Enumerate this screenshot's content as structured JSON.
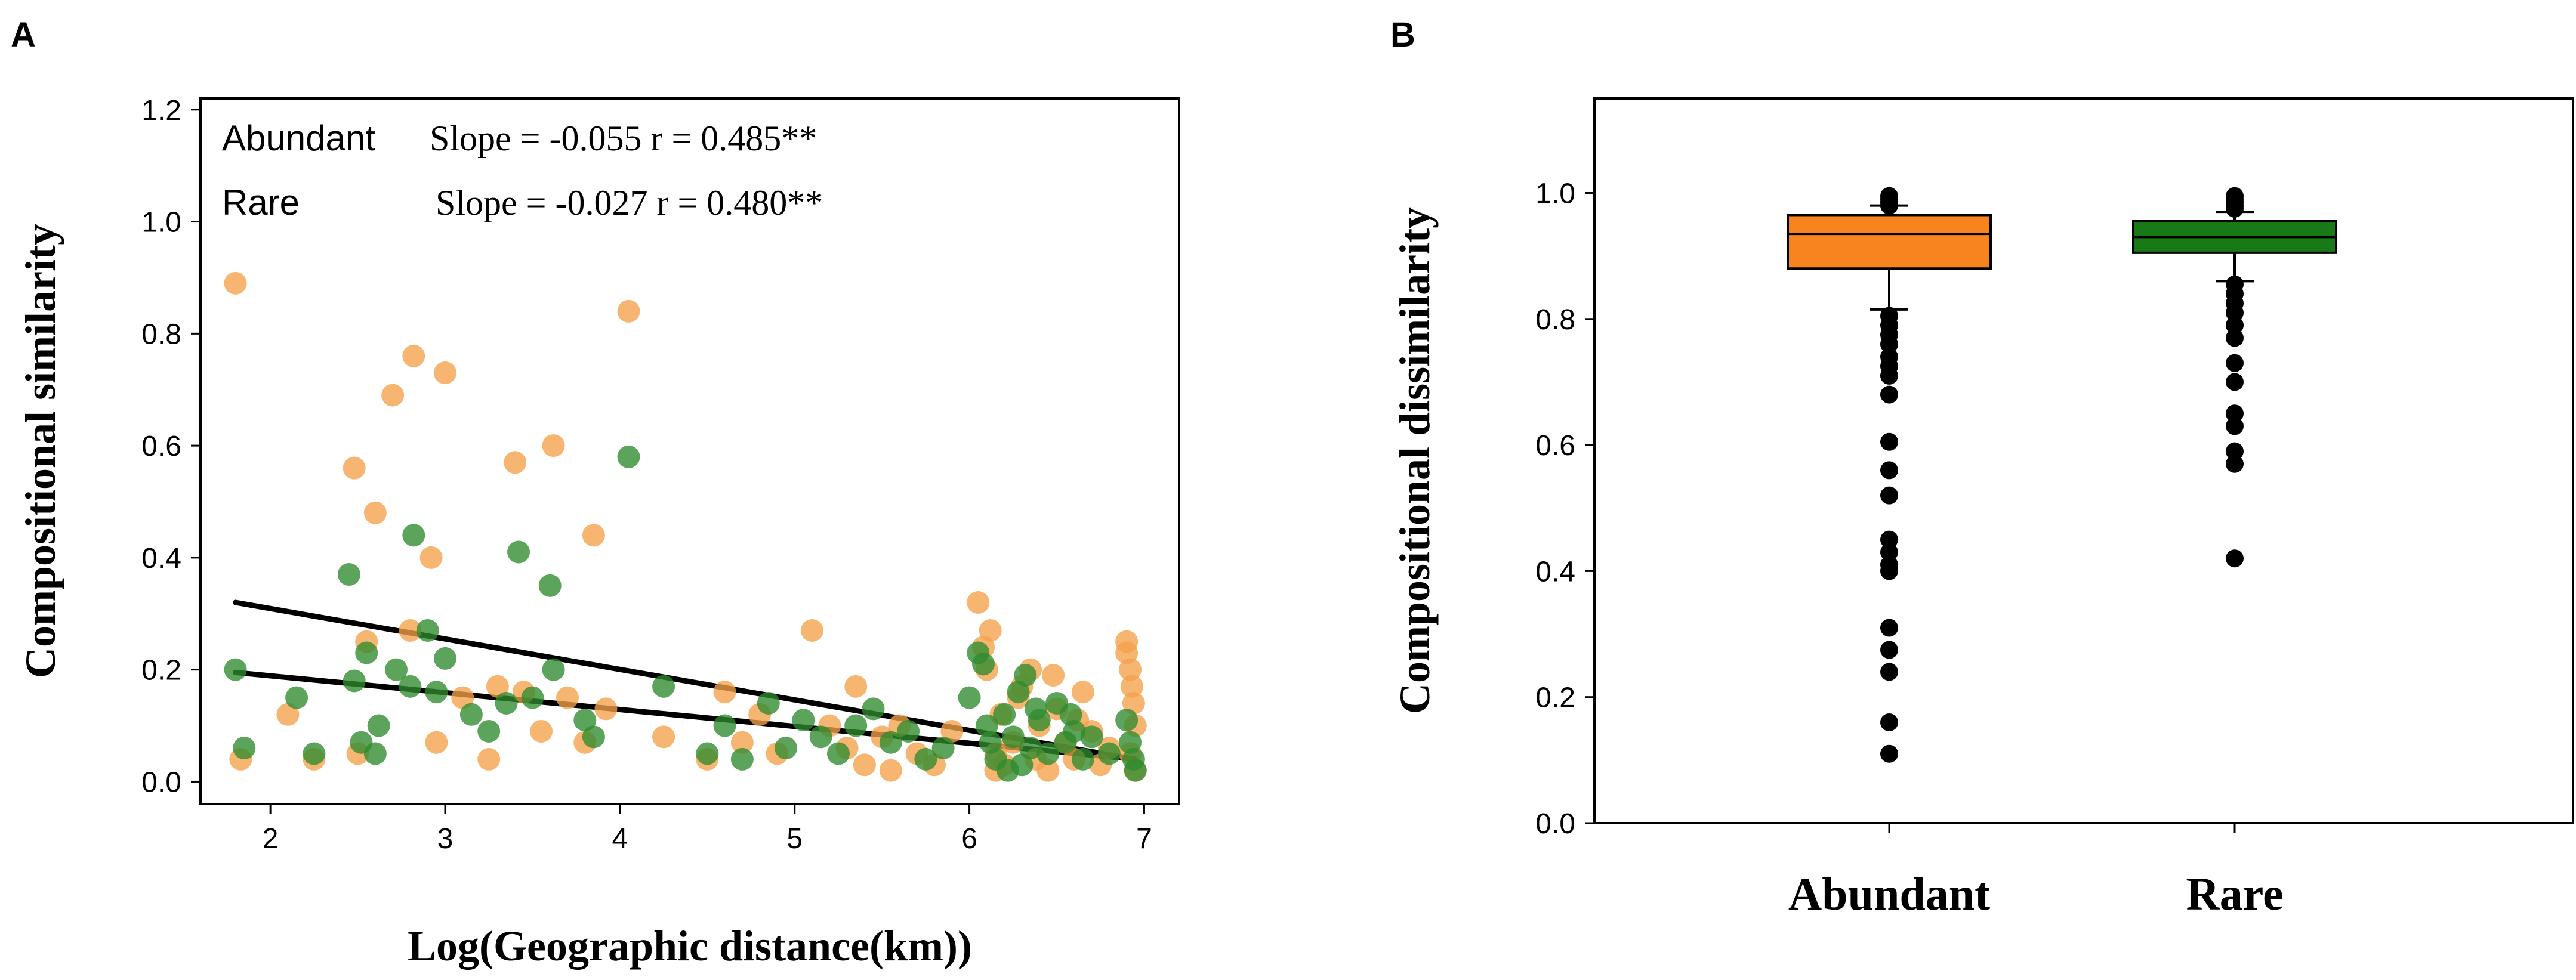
{
  "chart_data": [
    {
      "panel": "A",
      "type": "scatter",
      "xlabel": "Log(Geographic distance(km))",
      "ylabel": "Compositional similarity",
      "xlim": [
        1.6,
        7.2
      ],
      "ylim": [
        -0.04,
        1.22
      ],
      "xticks": [
        "2",
        "3",
        "4",
        "5",
        "6",
        "7"
      ],
      "yticks": [
        "0.0",
        "0.2",
        "0.4",
        "0.6",
        "0.8",
        "1.0",
        "1.2"
      ],
      "series": [
        {
          "name": "Abundant",
          "stat_label": "Slope = -0.055 r = 0.485**",
          "color": "#f5a04a",
          "trend": {
            "x": [
              1.8,
              6.95
            ],
            "y": [
              0.32,
              0.04
            ]
          },
          "points": [
            [
              1.8,
              0.89
            ],
            [
              1.83,
              0.04
            ],
            [
              2.1,
              0.12
            ],
            [
              2.25,
              0.04
            ],
            [
              2.48,
              0.56
            ],
            [
              2.5,
              0.05
            ],
            [
              2.55,
              0.25
            ],
            [
              2.6,
              0.48
            ],
            [
              2.7,
              0.69
            ],
            [
              2.8,
              0.27
            ],
            [
              2.82,
              0.76
            ],
            [
              2.92,
              0.4
            ],
            [
              2.95,
              0.07
            ],
            [
              3.0,
              0.73
            ],
            [
              3.1,
              0.15
            ],
            [
              3.25,
              0.04
            ],
            [
              3.3,
              0.17
            ],
            [
              3.4,
              0.57
            ],
            [
              3.45,
              0.16
            ],
            [
              3.55,
              0.09
            ],
            [
              3.62,
              0.6
            ],
            [
              3.7,
              0.15
            ],
            [
              3.8,
              0.07
            ],
            [
              3.85,
              0.44
            ],
            [
              3.92,
              0.13
            ],
            [
              4.05,
              0.84
            ],
            [
              4.25,
              0.08
            ],
            [
              4.5,
              0.04
            ],
            [
              4.6,
              0.16
            ],
            [
              4.7,
              0.07
            ],
            [
              4.8,
              0.12
            ],
            [
              4.9,
              0.05
            ],
            [
              5.1,
              0.27
            ],
            [
              5.2,
              0.1
            ],
            [
              5.3,
              0.06
            ],
            [
              5.35,
              0.17
            ],
            [
              5.4,
              0.03
            ],
            [
              5.5,
              0.08
            ],
            [
              5.55,
              0.02
            ],
            [
              5.6,
              0.1
            ],
            [
              5.7,
              0.05
            ],
            [
              5.8,
              0.03
            ],
            [
              5.9,
              0.09
            ],
            [
              6.05,
              0.32
            ],
            [
              6.08,
              0.24
            ],
            [
              6.1,
              0.2
            ],
            [
              6.12,
              0.27
            ],
            [
              6.15,
              0.05
            ],
            [
              6.18,
              0.12
            ],
            [
              6.2,
              0.03
            ],
            [
              6.25,
              0.07
            ],
            [
              6.3,
              0.17
            ],
            [
              6.35,
              0.2
            ],
            [
              6.38,
              0.04
            ],
            [
              6.4,
              0.1
            ],
            [
              6.45,
              0.02
            ],
            [
              6.5,
              0.13
            ],
            [
              6.55,
              0.07
            ],
            [
              6.6,
              0.04
            ],
            [
              6.65,
              0.16
            ],
            [
              6.7,
              0.09
            ],
            [
              6.75,
              0.03
            ],
            [
              6.8,
              0.06
            ],
            [
              6.9,
              0.25
            ],
            [
              6.9,
              0.23
            ],
            [
              6.92,
              0.2
            ],
            [
              6.93,
              0.17
            ],
            [
              6.94,
              0.14
            ],
            [
              6.95,
              0.1
            ],
            [
              6.92,
              0.05
            ],
            [
              6.95,
              0.02
            ],
            [
              6.15,
              0.02
            ],
            [
              6.28,
              0.15
            ],
            [
              6.48,
              0.19
            ],
            [
              6.62,
              0.11
            ]
          ]
        },
        {
          "name": "Rare",
          "stat_label": "Slope = -0.027 r = 0.480**",
          "color": "#2e8b2e",
          "trend": {
            "x": [
              1.8,
              6.95
            ],
            "y": [
              0.195,
              0.04
            ]
          },
          "points": [
            [
              1.8,
              0.2
            ],
            [
              1.85,
              0.06
            ],
            [
              2.15,
              0.15
            ],
            [
              2.25,
              0.05
            ],
            [
              2.45,
              0.37
            ],
            [
              2.48,
              0.18
            ],
            [
              2.52,
              0.07
            ],
            [
              2.55,
              0.23
            ],
            [
              2.6,
              0.05
            ],
            [
              2.62,
              0.1
            ],
            [
              2.72,
              0.2
            ],
            [
              2.8,
              0.17
            ],
            [
              2.82,
              0.44
            ],
            [
              2.9,
              0.27
            ],
            [
              2.95,
              0.16
            ],
            [
              3.0,
              0.22
            ],
            [
              3.15,
              0.12
            ],
            [
              3.25,
              0.09
            ],
            [
              3.35,
              0.14
            ],
            [
              3.42,
              0.41
            ],
            [
              3.5,
              0.15
            ],
            [
              3.6,
              0.35
            ],
            [
              3.62,
              0.2
            ],
            [
              3.8,
              0.11
            ],
            [
              3.85,
              0.08
            ],
            [
              4.05,
              0.58
            ],
            [
              4.25,
              0.17
            ],
            [
              4.5,
              0.05
            ],
            [
              4.6,
              0.1
            ],
            [
              4.7,
              0.04
            ],
            [
              4.85,
              0.14
            ],
            [
              4.95,
              0.06
            ],
            [
              5.05,
              0.11
            ],
            [
              5.15,
              0.08
            ],
            [
              5.25,
              0.05
            ],
            [
              5.35,
              0.1
            ],
            [
              5.45,
              0.13
            ],
            [
              5.55,
              0.07
            ],
            [
              5.65,
              0.09
            ],
            [
              5.75,
              0.04
            ],
            [
              5.85,
              0.06
            ],
            [
              6.0,
              0.15
            ],
            [
              6.05,
              0.23
            ],
            [
              6.08,
              0.21
            ],
            [
              6.1,
              0.1
            ],
            [
              6.15,
              0.04
            ],
            [
              6.2,
              0.12
            ],
            [
              6.25,
              0.08
            ],
            [
              6.28,
              0.16
            ],
            [
              6.3,
              0.03
            ],
            [
              6.32,
              0.19
            ],
            [
              6.35,
              0.06
            ],
            [
              6.4,
              0.11
            ],
            [
              6.45,
              0.05
            ],
            [
              6.5,
              0.14
            ],
            [
              6.55,
              0.07
            ],
            [
              6.6,
              0.09
            ],
            [
              6.65,
              0.04
            ],
            [
              6.7,
              0.08
            ],
            [
              6.8,
              0.05
            ],
            [
              6.9,
              0.11
            ],
            [
              6.92,
              0.07
            ],
            [
              6.94,
              0.04
            ],
            [
              6.95,
              0.02
            ],
            [
              6.22,
              0.02
            ],
            [
              6.38,
              0.13
            ],
            [
              6.58,
              0.12
            ],
            [
              6.12,
              0.07
            ]
          ]
        }
      ]
    },
    {
      "panel": "B",
      "type": "box",
      "ylabel": "Compositional dissimilarity",
      "ylim": [
        0.0,
        1.15
      ],
      "yticks": [
        "0.0",
        "0.2",
        "0.4",
        "0.6",
        "0.8",
        "1.0"
      ],
      "categories": [
        "Abundant",
        "Rare"
      ],
      "boxes": [
        {
          "name": "Abundant",
          "color": "#f7841f",
          "q1": 0.88,
          "median": 0.935,
          "q3": 0.965,
          "whisker_low": 0.815,
          "whisker_high": 0.98,
          "outliers": [
            0.995,
            0.99,
            0.985,
            0.98,
            0.805,
            0.79,
            0.775,
            0.76,
            0.74,
            0.725,
            0.71,
            0.68,
            0.605,
            0.56,
            0.52,
            0.45,
            0.43,
            0.41,
            0.4,
            0.31,
            0.275,
            0.24,
            0.16,
            0.11
          ]
        },
        {
          "name": "Rare",
          "color": "#177a17",
          "q1": 0.905,
          "median": 0.93,
          "q3": 0.955,
          "whisker_low": 0.86,
          "whisker_high": 0.97,
          "outliers": [
            0.995,
            0.99,
            0.985,
            0.98,
            0.975,
            0.855,
            0.84,
            0.825,
            0.81,
            0.79,
            0.77,
            0.73,
            0.7,
            0.65,
            0.63,
            0.59,
            0.57,
            0.42
          ]
        }
      ]
    }
  ]
}
